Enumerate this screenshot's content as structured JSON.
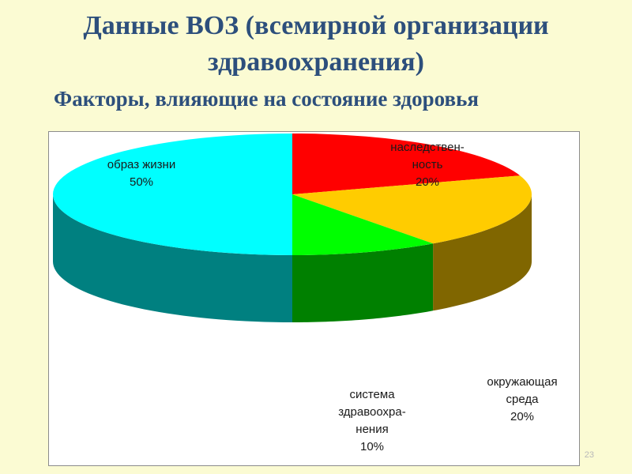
{
  "slide": {
    "title_line1": "Данные ВОЗ (всемирной организации",
    "title_line2": "здравоохранения)",
    "subtitle": "Факторы, влияющие на состояние здоровья",
    "page_number": "23"
  },
  "chart_data": {
    "type": "pie",
    "three_d": true,
    "title": "",
    "start_angle_deg": 90,
    "direction": "clockwise",
    "legend": "none",
    "slices": [
      {
        "label_lines": [
          "наследствен-",
          "ность"
        ],
        "value": 20,
        "value_label": "20%",
        "top_color": "#ff0000",
        "side_color": "#8b0000"
      },
      {
        "label_lines": [
          "окружающая",
          "среда"
        ],
        "value": 20,
        "value_label": "20%",
        "top_color": "#ffcc00",
        "side_color": "#806600"
      },
      {
        "label_lines": [
          "система",
          "здравоохра-",
          "нения"
        ],
        "value": 10,
        "value_label": "10%",
        "top_color": "#00ff00",
        "side_color": "#008000"
      },
      {
        "label_lines": [
          "образ жизни"
        ],
        "value": 50,
        "value_label": "50%",
        "top_color": "#00ffff",
        "side_color": "#008080"
      }
    ]
  }
}
